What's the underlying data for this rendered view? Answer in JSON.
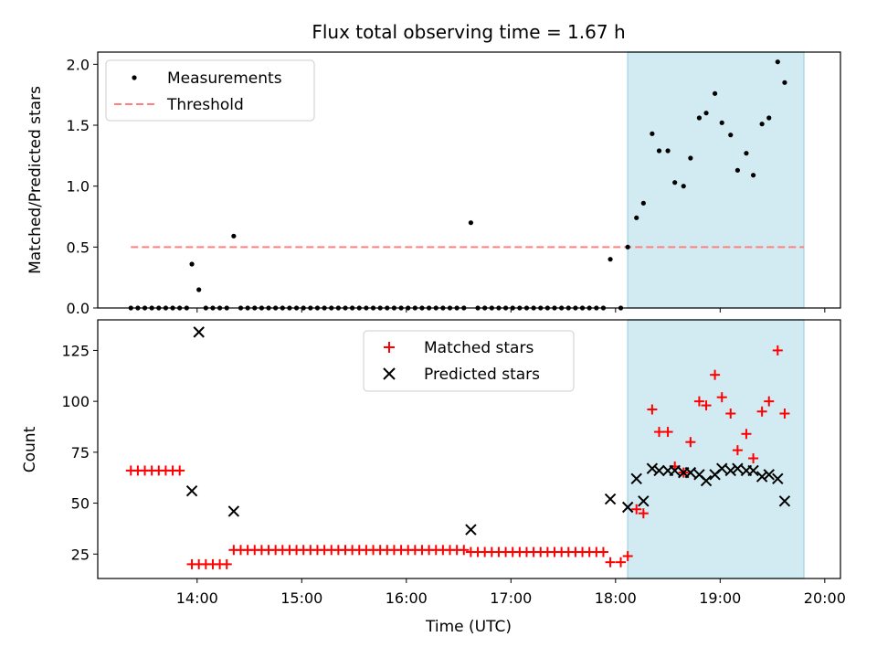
{
  "title": "Flux total observing time = 1.67 h",
  "xlabel": "Time (UTC)",
  "xticks": [
    "14:00",
    "15:00",
    "16:00",
    "17:00",
    "18:00",
    "19:00",
    "20:00"
  ],
  "colors": {
    "shade": "#add8e6",
    "threshold": "#ff7f7f",
    "matched": "#ff0000",
    "predicted": "#000000",
    "measurements": "#000000"
  },
  "chart_data": [
    {
      "type": "scatter",
      "ylabel": "Matched/Predicted stars",
      "ylim": [
        0.0,
        2.1
      ],
      "yticks": [
        "0.0",
        "0.5",
        "1.0",
        "1.5",
        "2.0"
      ],
      "xlim_hours": [
        13.05,
        20.15
      ],
      "legend_position": "top-left",
      "highlight_span": [
        "18:07",
        "19:48"
      ],
      "threshold": {
        "label": "Threshold",
        "y": 0.5,
        "x_range": [
          "13:22",
          "19:48"
        ],
        "style": "dashed"
      },
      "series": [
        {
          "name": "Measurements",
          "points": [
            [
              "13:22",
              0
            ],
            [
              "13:26",
              0
            ],
            [
              "13:30",
              0
            ],
            [
              "13:34",
              0
            ],
            [
              "13:38",
              0
            ],
            [
              "13:42",
              0
            ],
            [
              "13:46",
              0
            ],
            [
              "13:50",
              0
            ],
            [
              "13:54",
              0
            ],
            [
              "13:57",
              0.36
            ],
            [
              "14:01",
              0.15
            ],
            [
              "14:05",
              0
            ],
            [
              "14:09",
              0
            ],
            [
              "14:13",
              0
            ],
            [
              "14:17",
              0
            ],
            [
              "14:21",
              0.59
            ],
            [
              "14:25",
              0
            ],
            [
              "14:29",
              0
            ],
            [
              "14:33",
              0
            ],
            [
              "14:37",
              0
            ],
            [
              "14:41",
              0
            ],
            [
              "14:45",
              0
            ],
            [
              "14:49",
              0
            ],
            [
              "14:53",
              0
            ],
            [
              "14:57",
              0
            ],
            [
              "15:01",
              0
            ],
            [
              "15:05",
              0
            ],
            [
              "15:09",
              0
            ],
            [
              "15:13",
              0
            ],
            [
              "15:17",
              0
            ],
            [
              "15:21",
              0
            ],
            [
              "15:25",
              0
            ],
            [
              "15:29",
              0
            ],
            [
              "15:33",
              0
            ],
            [
              "15:37",
              0
            ],
            [
              "15:41",
              0
            ],
            [
              "15:45",
              0
            ],
            [
              "15:49",
              0
            ],
            [
              "15:53",
              0
            ],
            [
              "15:57",
              0
            ],
            [
              "16:01",
              0
            ],
            [
              "16:05",
              0
            ],
            [
              "16:09",
              0
            ],
            [
              "16:13",
              0
            ],
            [
              "16:17",
              0
            ],
            [
              "16:21",
              0
            ],
            [
              "16:25",
              0
            ],
            [
              "16:29",
              0
            ],
            [
              "16:33",
              0
            ],
            [
              "16:37",
              0.7
            ],
            [
              "16:41",
              0
            ],
            [
              "16:45",
              0
            ],
            [
              "16:49",
              0
            ],
            [
              "16:53",
              0
            ],
            [
              "16:57",
              0
            ],
            [
              "17:01",
              0
            ],
            [
              "17:05",
              0
            ],
            [
              "17:09",
              0
            ],
            [
              "17:13",
              0
            ],
            [
              "17:17",
              0
            ],
            [
              "17:21",
              0
            ],
            [
              "17:25",
              0
            ],
            [
              "17:29",
              0
            ],
            [
              "17:33",
              0
            ],
            [
              "17:37",
              0
            ],
            [
              "17:41",
              0
            ],
            [
              "17:45",
              0
            ],
            [
              "17:49",
              0
            ],
            [
              "17:53",
              0
            ],
            [
              "17:57",
              0.4
            ],
            [
              "18:03",
              0
            ],
            [
              "18:07",
              0.5
            ],
            [
              "18:12",
              0.74
            ],
            [
              "18:16",
              0.86
            ],
            [
              "18:21",
              1.43
            ],
            [
              "18:25",
              1.29
            ],
            [
              "18:30",
              1.29
            ],
            [
              "18:34",
              1.03
            ],
            [
              "18:39",
              1.0
            ],
            [
              "18:43",
              1.23
            ],
            [
              "18:48",
              1.56
            ],
            [
              "18:52",
              1.6
            ],
            [
              "18:57",
              1.76
            ],
            [
              "19:01",
              1.52
            ],
            [
              "19:06",
              1.42
            ],
            [
              "19:10",
              1.13
            ],
            [
              "19:15",
              1.27
            ],
            [
              "19:19",
              1.09
            ],
            [
              "19:24",
              1.51
            ],
            [
              "19:28",
              1.56
            ],
            [
              "19:33",
              2.02
            ],
            [
              "19:37",
              1.85
            ]
          ]
        }
      ]
    },
    {
      "type": "scatter",
      "ylabel": "Count",
      "ylim": [
        13,
        140
      ],
      "yticks": [
        "25",
        "50",
        "75",
        "100",
        "125"
      ],
      "xlim_hours": [
        13.05,
        20.15
      ],
      "legend_position": "top-center",
      "highlight_span": [
        "18:07",
        "19:48"
      ],
      "series": [
        {
          "name": "Matched stars",
          "marker": "plus",
          "points": [
            [
              "13:22",
              66
            ],
            [
              "13:26",
              66
            ],
            [
              "13:30",
              66
            ],
            [
              "13:34",
              66
            ],
            [
              "13:38",
              66
            ],
            [
              "13:42",
              66
            ],
            [
              "13:46",
              66
            ],
            [
              "13:50",
              66
            ],
            [
              "13:57",
              20
            ],
            [
              "14:01",
              20
            ],
            [
              "14:05",
              20
            ],
            [
              "14:09",
              20
            ],
            [
              "14:13",
              20
            ],
            [
              "14:17",
              20
            ],
            [
              "14:21",
              27
            ],
            [
              "14:25",
              27
            ],
            [
              "14:29",
              27
            ],
            [
              "14:33",
              27
            ],
            [
              "14:37",
              27
            ],
            [
              "14:41",
              27
            ],
            [
              "14:45",
              27
            ],
            [
              "14:49",
              27
            ],
            [
              "14:53",
              27
            ],
            [
              "14:57",
              27
            ],
            [
              "15:01",
              27
            ],
            [
              "15:05",
              27
            ],
            [
              "15:09",
              27
            ],
            [
              "15:13",
              27
            ],
            [
              "15:17",
              27
            ],
            [
              "15:21",
              27
            ],
            [
              "15:25",
              27
            ],
            [
              "15:29",
              27
            ],
            [
              "15:33",
              27
            ],
            [
              "15:37",
              27
            ],
            [
              "15:41",
              27
            ],
            [
              "15:45",
              27
            ],
            [
              "15:49",
              27
            ],
            [
              "15:53",
              27
            ],
            [
              "15:57",
              27
            ],
            [
              "16:01",
              27
            ],
            [
              "16:05",
              27
            ],
            [
              "16:09",
              27
            ],
            [
              "16:13",
              27
            ],
            [
              "16:17",
              27
            ],
            [
              "16:21",
              27
            ],
            [
              "16:25",
              27
            ],
            [
              "16:29",
              27
            ],
            [
              "16:33",
              27
            ],
            [
              "16:37",
              26
            ],
            [
              "16:41",
              26
            ],
            [
              "16:45",
              26
            ],
            [
              "16:49",
              26
            ],
            [
              "16:53",
              26
            ],
            [
              "16:57",
              26
            ],
            [
              "17:01",
              26
            ],
            [
              "17:05",
              26
            ],
            [
              "17:09",
              26
            ],
            [
              "17:13",
              26
            ],
            [
              "17:17",
              26
            ],
            [
              "17:21",
              26
            ],
            [
              "17:25",
              26
            ],
            [
              "17:29",
              26
            ],
            [
              "17:33",
              26
            ],
            [
              "17:37",
              26
            ],
            [
              "17:41",
              26
            ],
            [
              "17:45",
              26
            ],
            [
              "17:49",
              26
            ],
            [
              "17:53",
              26
            ],
            [
              "17:57",
              21
            ],
            [
              "18:03",
              21
            ],
            [
              "18:07",
              24
            ],
            [
              "18:12",
              47
            ],
            [
              "18:16",
              45
            ],
            [
              "18:21",
              96
            ],
            [
              "18:25",
              85
            ],
            [
              "18:30",
              85
            ],
            [
              "18:34",
              68
            ],
            [
              "18:39",
              65
            ],
            [
              "18:43",
              80
            ],
            [
              "18:48",
              100
            ],
            [
              "18:52",
              98
            ],
            [
              "18:57",
              113
            ],
            [
              "19:01",
              102
            ],
            [
              "19:06",
              94
            ],
            [
              "19:10",
              76
            ],
            [
              "19:15",
              84
            ],
            [
              "19:19",
              72
            ],
            [
              "19:24",
              95
            ],
            [
              "19:28",
              100
            ],
            [
              "19:33",
              125
            ],
            [
              "19:37",
              94
            ]
          ]
        },
        {
          "name": "Predicted stars",
          "marker": "x",
          "points": [
            [
              "13:57",
              56
            ],
            [
              "14:01",
              134
            ],
            [
              "14:21",
              46
            ],
            [
              "16:37",
              37
            ],
            [
              "17:57",
              52
            ],
            [
              "18:07",
              48
            ],
            [
              "18:12",
              62
            ],
            [
              "18:16",
              51
            ],
            [
              "18:21",
              67
            ],
            [
              "18:25",
              66
            ],
            [
              "18:30",
              66
            ],
            [
              "18:34",
              66
            ],
            [
              "18:39",
              65
            ],
            [
              "18:43",
              65
            ],
            [
              "18:48",
              64
            ],
            [
              "18:52",
              61
            ],
            [
              "18:57",
              64
            ],
            [
              "19:01",
              67
            ],
            [
              "19:06",
              66
            ],
            [
              "19:10",
              67
            ],
            [
              "19:15",
              66
            ],
            [
              "19:19",
              66
            ],
            [
              "19:24",
              63
            ],
            [
              "19:28",
              64
            ],
            [
              "19:33",
              62
            ],
            [
              "19:37",
              51
            ]
          ]
        }
      ]
    }
  ]
}
